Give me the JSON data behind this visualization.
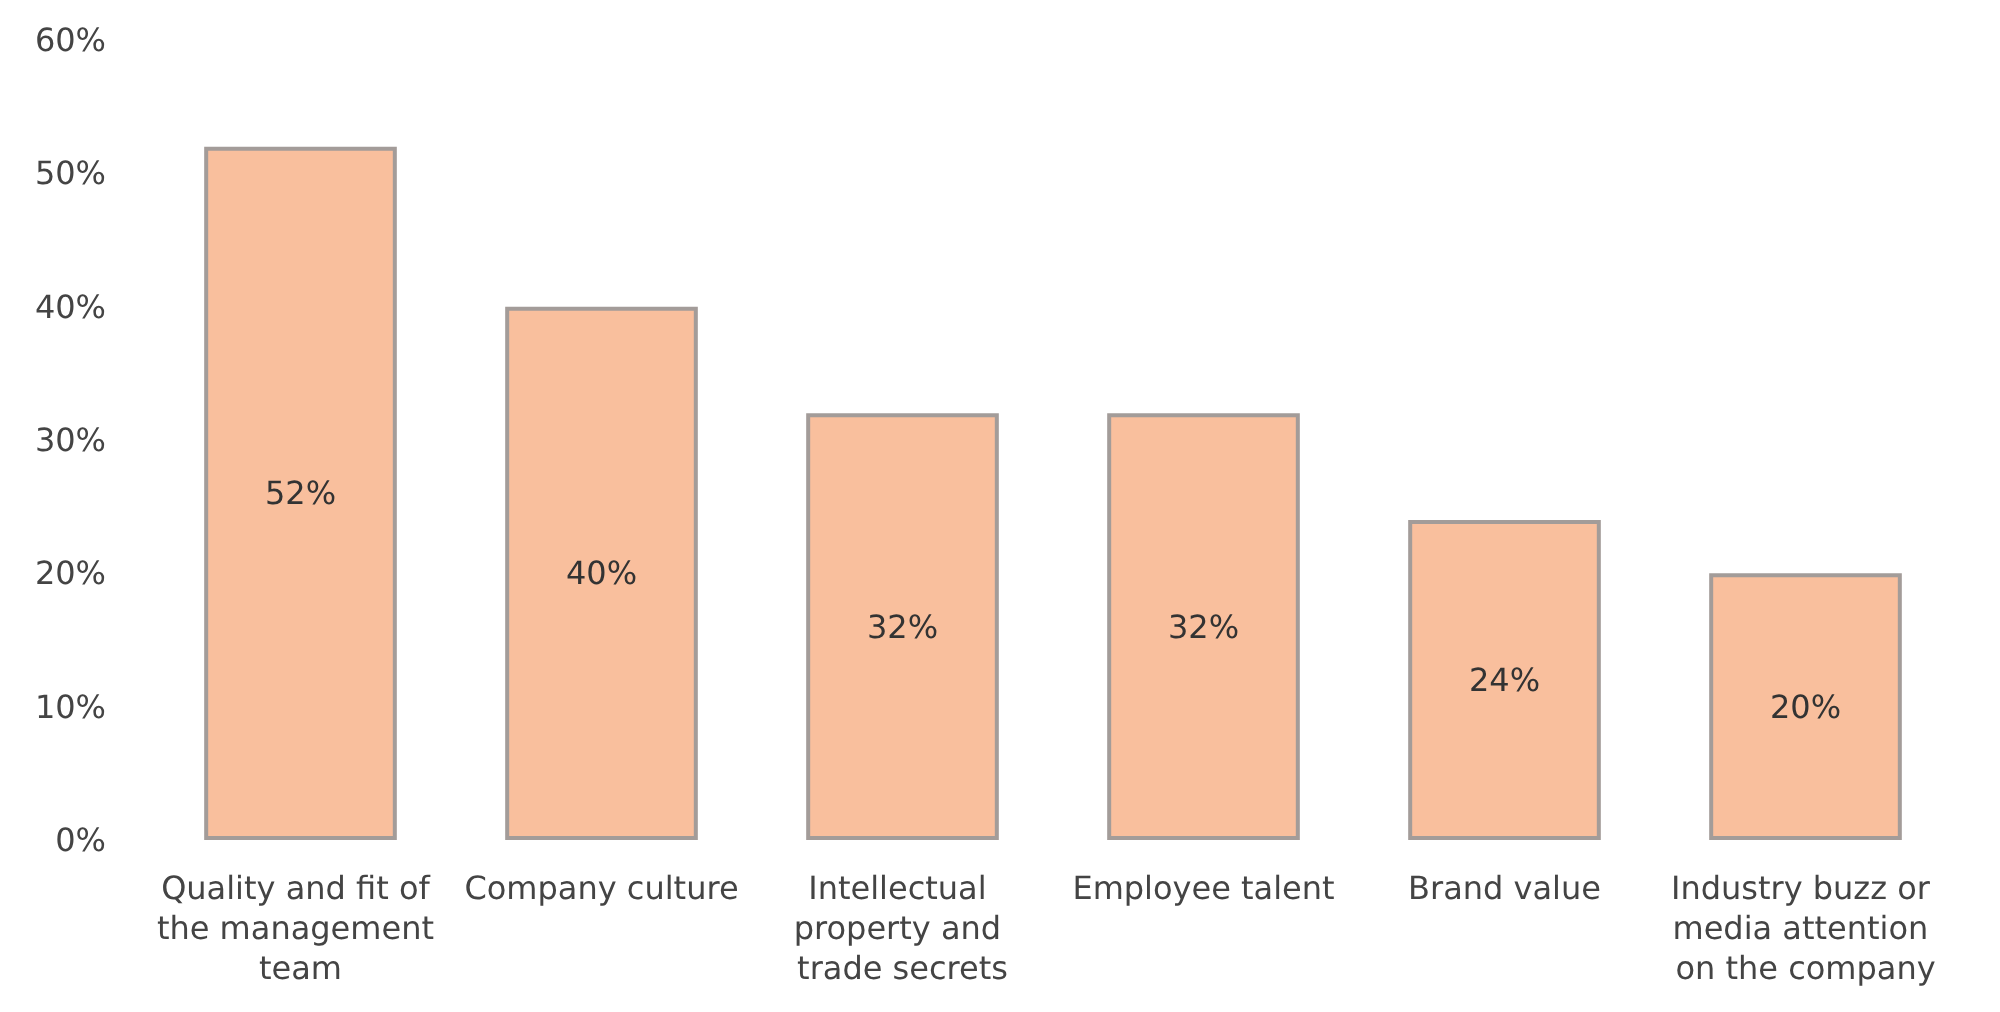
{
  "chart_data": {
    "type": "bar",
    "categories": [
      "Quality and fit of the management team",
      "Company culture",
      "Intellectual property and trade secrets",
      "Employee talent",
      "Brand value",
      "Industry buzz or media attention on the company"
    ],
    "values": [
      52,
      40,
      32,
      32,
      24,
      20
    ],
    "value_labels": [
      "52%",
      "40%",
      "32%",
      "32%",
      "24%",
      "20%"
    ],
    "color": "#f9bf9d",
    "ylim": [
      0,
      60
    ],
    "yticks": [
      {
        "value": 0,
        "label": "0%"
      },
      {
        "value": 10,
        "label": "10%"
      },
      {
        "value": 20,
        "label": "20%"
      },
      {
        "value": 30,
        "label": "30%"
      },
      {
        "value": 40,
        "label": "40%"
      },
      {
        "value": 50,
        "label": "50%"
      },
      {
        "value": 60,
        "label": "60%"
      }
    ],
    "grid": false
  }
}
